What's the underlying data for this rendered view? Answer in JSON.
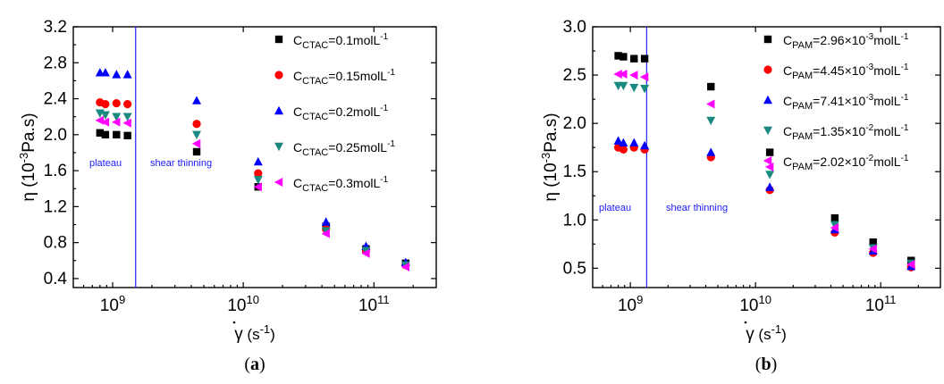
{
  "chart_data": [
    {
      "type": "scatter",
      "panel_label": "a",
      "xlabel": "γ̇ (s⁻¹)",
      "ylabel": "η (10⁻³Pa.s)",
      "xscale": "log",
      "xlim": [
        500000000,
        300000000000
      ],
      "ylim": [
        0.3,
        3.2
      ],
      "xticks": [
        1000000000,
        10000000000,
        100000000000
      ],
      "xtick_labels": [
        "10^9",
        "10^10",
        "10^11"
      ],
      "yticks": [
        0.4,
        0.8,
        1.2,
        1.6,
        2.0,
        2.4,
        2.8,
        3.2
      ],
      "ytick_labels": [
        "0.4",
        "0.8",
        "1.2",
        "1.6",
        "2.0",
        "2.4",
        "2.8",
        "3.2"
      ],
      "vline_x": 1500000000,
      "vline_color": "#3333ff",
      "region_labels": [
        "plateau",
        "shear thinning"
      ],
      "legend_position": "top-right",
      "series": [
        {
          "name": "C_CTAC=0.1molL-1",
          "label_main": "C",
          "label_sub": "CTAC",
          "label_rest": "=0.1molL",
          "label_sup": "-1",
          "marker": "square",
          "color": "#000000",
          "x": [
            800000000,
            880000000,
            1070000000,
            1300000000,
            4400000000,
            13000000000,
            43000000000,
            87000000000,
            175000000000
          ],
          "y": [
            2.02,
            2.0,
            2.0,
            1.99,
            1.81,
            1.42,
            0.98,
            0.73,
            0.57
          ]
        },
        {
          "name": "C_CTAC=0.15molL-1",
          "label_main": "C",
          "label_sub": "CTAC",
          "label_rest": "=0.15molL",
          "label_sup": "-1",
          "marker": "circle",
          "color": "#ff0000",
          "x": [
            800000000,
            880000000,
            1070000000,
            1300000000,
            4400000000,
            13000000000,
            43000000000,
            87000000000,
            175000000000
          ],
          "y": [
            2.36,
            2.34,
            2.35,
            2.34,
            2.12,
            1.57,
            0.95,
            0.72,
            0.55
          ]
        },
        {
          "name": "C_CTAC=0.2molL-1",
          "label_main": "C",
          "label_sub": "CTAC",
          "label_rest": "=0.2molL",
          "label_sup": "-1",
          "marker": "triangle-up",
          "color": "#0000ff",
          "x": [
            800000000,
            880000000,
            1070000000,
            1300000000,
            4400000000,
            13000000000,
            43000000000,
            87000000000,
            175000000000
          ],
          "y": [
            2.69,
            2.69,
            2.67,
            2.67,
            2.38,
            1.7,
            1.03,
            0.76,
            0.58
          ]
        },
        {
          "name": "C_CTAC=0.25molL-1",
          "label_main": "C",
          "label_sub": "CTAC",
          "label_rest": "=0.25molL",
          "label_sup": "-1",
          "marker": "triangle-down",
          "color": "#1a8a80",
          "x": [
            800000000,
            880000000,
            1070000000,
            1300000000,
            4400000000,
            13000000000,
            43000000000,
            87000000000,
            175000000000
          ],
          "y": [
            2.24,
            2.22,
            2.2,
            2.2,
            2.0,
            1.5,
            0.93,
            0.71,
            0.55
          ]
        },
        {
          "name": "C_CTAC=0.3molL-1",
          "label_main": "C",
          "label_sub": "CTAC",
          "label_rest": "=0.3molL",
          "label_sup": "-1",
          "marker": "triangle-left",
          "color": "#ff00ff",
          "x": [
            800000000,
            880000000,
            1070000000,
            1300000000,
            4400000000,
            13000000000,
            43000000000,
            87000000000,
            175000000000
          ],
          "y": [
            2.16,
            2.14,
            2.14,
            2.13,
            1.9,
            1.42,
            0.9,
            0.68,
            0.53
          ]
        }
      ]
    },
    {
      "type": "scatter",
      "panel_label": "b",
      "xlabel": "γ̇ (s⁻¹)",
      "ylabel": "η (10⁻³Pa.s)",
      "xscale": "log",
      "xlim": [
        500000000,
        300000000000
      ],
      "ylim": [
        0.3,
        3.0
      ],
      "xticks": [
        1000000000,
        10000000000,
        100000000000
      ],
      "xtick_labels": [
        "10^9",
        "10^10",
        "10^11"
      ],
      "yticks": [
        0.5,
        1.0,
        1.5,
        2.0,
        2.5,
        3.0
      ],
      "ytick_labels": [
        "0.5",
        "1.0",
        "1.5",
        "2.0",
        "2.5",
        "3.0"
      ],
      "vline_x": 1350000000,
      "vline_color": "#3333ff",
      "region_labels": [
        "plateau",
        "shear thinning"
      ],
      "legend_position": "top-right",
      "series": [
        {
          "name": "C_PAM=2.96×10-3molL-1",
          "label_main": "C",
          "label_sub": "PAM",
          "label_rest": "=2.96×10",
          "label_sup": "-3",
          "label_rest2": "molL",
          "label_sup2": "-1",
          "marker": "square",
          "color": "#000000",
          "x": [
            800000000,
            880000000,
            1070000000,
            1300000000,
            4400000000,
            13000000000,
            43000000000,
            87000000000,
            175000000000
          ],
          "y": [
            2.7,
            2.69,
            2.67,
            2.67,
            2.38,
            1.7,
            1.02,
            0.77,
            0.58
          ]
        },
        {
          "name": "C_PAM=4.45×10-3molL-1",
          "label_main": "C",
          "label_sub": "PAM",
          "label_rest": "=4.45×10",
          "label_sup": "-3",
          "label_rest2": "molL",
          "label_sup2": "-1",
          "marker": "circle",
          "color": "#ff0000",
          "x": [
            800000000,
            880000000,
            1070000000,
            1300000000,
            4400000000,
            13000000000,
            43000000000,
            87000000000,
            175000000000
          ],
          "y": [
            1.75,
            1.73,
            1.75,
            1.73,
            1.65,
            1.31,
            0.87,
            0.66,
            0.51
          ]
        },
        {
          "name": "C_PAM=7.41×10-3molL-1",
          "label_main": "C",
          "label_sub": "PAM",
          "label_rest": "=7.41×10",
          "label_sup": "-3",
          "label_rest2": "molL",
          "label_sup2": "-1",
          "marker": "triangle-up",
          "color": "#0000ff",
          "x": [
            800000000,
            880000000,
            1070000000,
            1300000000,
            4400000000,
            13000000000,
            43000000000,
            87000000000,
            175000000000
          ],
          "y": [
            1.82,
            1.8,
            1.8,
            1.77,
            1.7,
            1.34,
            0.9,
            0.68,
            0.52
          ]
        },
        {
          "name": "C_PAM=1.35×10-2molL-1",
          "label_main": "C",
          "label_sub": "PAM",
          "label_rest": "=1.35×10",
          "label_sup": "-2",
          "label_rest2": "molL",
          "label_sup2": "-1",
          "marker": "triangle-down",
          "color": "#1a8a80",
          "x": [
            800000000,
            880000000,
            1070000000,
            1300000000,
            4400000000,
            13000000000,
            43000000000,
            87000000000,
            175000000000
          ],
          "y": [
            2.39,
            2.39,
            2.37,
            2.36,
            2.03,
            1.47,
            0.95,
            0.71,
            0.55
          ]
        },
        {
          "name": "C_PAM=2.02×10-2molL-1",
          "label_main": "C",
          "label_sub": "PAM",
          "label_rest": "=2.02×10",
          "label_sup": "-2",
          "label_rest2": "molL",
          "label_sup2": "-1",
          "marker": "triangle-left",
          "color": "#ff00ff",
          "x": [
            800000000,
            880000000,
            1070000000,
            1300000000,
            4400000000,
            13000000000,
            43000000000,
            87000000000,
            175000000000
          ],
          "y": [
            2.51,
            2.51,
            2.5,
            2.48,
            2.2,
            1.55,
            0.92,
            0.7,
            0.54
          ]
        }
      ]
    }
  ]
}
